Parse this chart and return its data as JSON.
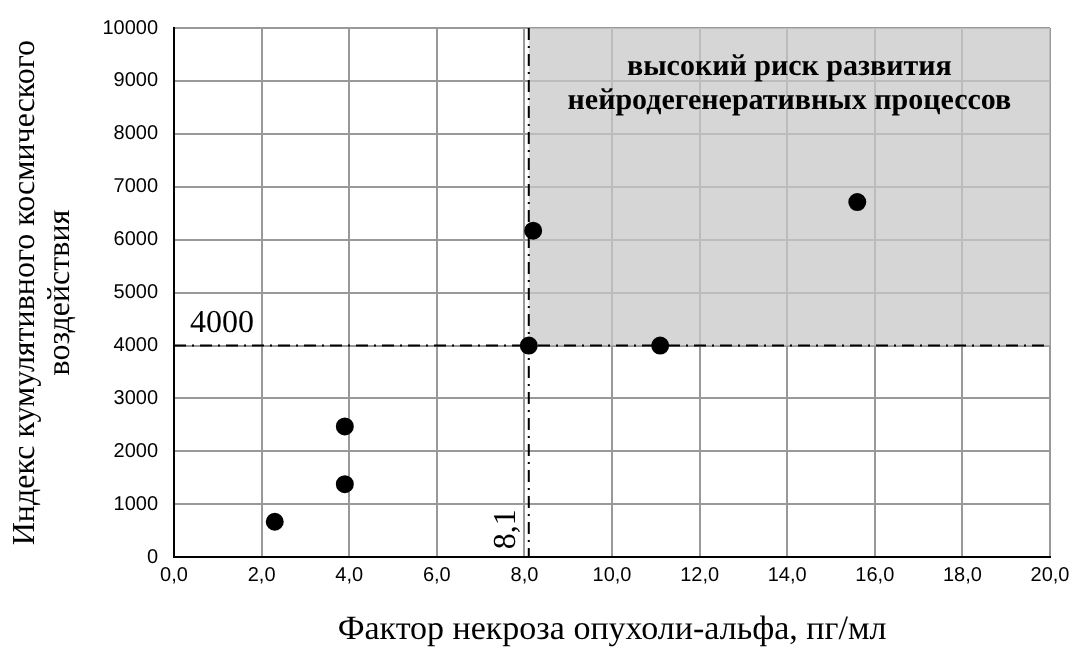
{
  "chart_data": {
    "type": "scatter",
    "xlabel": "Фактор некроза опухоли-альфа, пг/мл",
    "ylabel": "Индекс кумулятивного космического воздействия",
    "series": [
      {
        "color": "#000000",
        "x": [
          2.3,
          3.9,
          3.9,
          8.1,
          8.2,
          11.1,
          15.6
        ],
        "values": [
          670,
          2470,
          1380,
          4000,
          6170,
          4000,
          6710
        ]
      }
    ],
    "xlim": [
      0,
      20
    ],
    "xticks": [
      {
        "value": 0,
        "label": "0,0"
      },
      {
        "value": 2,
        "label": "2,0"
      },
      {
        "value": 4,
        "label": "4,0"
      },
      {
        "value": 6,
        "label": "6,0"
      },
      {
        "value": 8,
        "label": "8,0"
      },
      {
        "value": 10,
        "label": "10,0"
      },
      {
        "value": 12,
        "label": "12,0"
      },
      {
        "value": 14,
        "label": "14,0"
      },
      {
        "value": 16,
        "label": "16,0"
      },
      {
        "value": 18,
        "label": "18,0"
      },
      {
        "value": 20,
        "label": "20,0"
      }
    ],
    "ylim": [
      0,
      10000
    ],
    "yticks": [
      0,
      1000,
      2000,
      3000,
      4000,
      5000,
      6000,
      7000,
      8000,
      9000,
      10000
    ],
    "ref_lines": [
      {
        "axis": "x",
        "value": 8.1,
        "label": "8,1",
        "line_style": "dashed"
      },
      {
        "axis": "y",
        "value": 4000,
        "label": "4000",
        "line_style": "dashed"
      }
    ],
    "bands": [
      {
        "axis": "y",
        "from": 4000,
        "to": 10000,
        "label": "высокий риск развития нейродегенеративных процессов",
        "color": "#c8c8c8"
      }
    ],
    "grid": true,
    "marker": "circle"
  }
}
